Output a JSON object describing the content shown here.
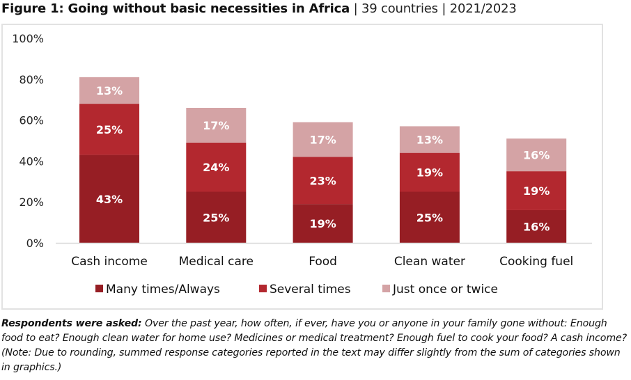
{
  "title": {
    "bold": "Figure 1: Going without basic necessities in Africa",
    "sep1": " | ",
    "countries": "39 countries",
    "sep2": " | ",
    "years": "2021/2023"
  },
  "chart_data": {
    "type": "bar",
    "stacked": true,
    "title": "Figure 1: Going without basic necessities in Africa | 39 countries | 2021/2023",
    "xlabel": "",
    "ylabel": "",
    "ylim": [
      0,
      100
    ],
    "yticks": [
      "0%",
      "20%",
      "40%",
      "60%",
      "80%",
      "100%"
    ],
    "ytick_values": [
      0,
      20,
      40,
      60,
      80,
      100
    ],
    "grid": false,
    "legend_position": "bottom",
    "categories": [
      "Cash income",
      "Medical care",
      "Food",
      "Clean water",
      "Cooking fuel"
    ],
    "series": [
      {
        "name": "Many times/Always",
        "color": "#961e24",
        "values": [
          43,
          25,
          19,
          25,
          16
        ],
        "labels": [
          "43%",
          "25%",
          "19%",
          "25%",
          "16%"
        ]
      },
      {
        "name": "Several times",
        "color": "#b3282f",
        "values": [
          25,
          24,
          23,
          19,
          19
        ],
        "labels": [
          "25%",
          "24%",
          "23%",
          "19%",
          "19%"
        ]
      },
      {
        "name": "Just once or twice",
        "color": "#d4a3a5",
        "values": [
          13,
          17,
          17,
          13,
          16
        ],
        "labels": [
          "13%",
          "17%",
          "17%",
          "13%",
          "16%"
        ]
      }
    ]
  },
  "note": {
    "bold": "Respondents were asked:",
    "text": " Over the past year, how often, if ever, have you or anyone in your family gone without: Enough food to eat? Enough clean water for home use? Medicines or medical treatment? Enough fuel to cook your food? A cash income? (Note: Due to rounding, summed response categories reported in the text may differ slightly from the sum of categories shown in graphics.)"
  }
}
